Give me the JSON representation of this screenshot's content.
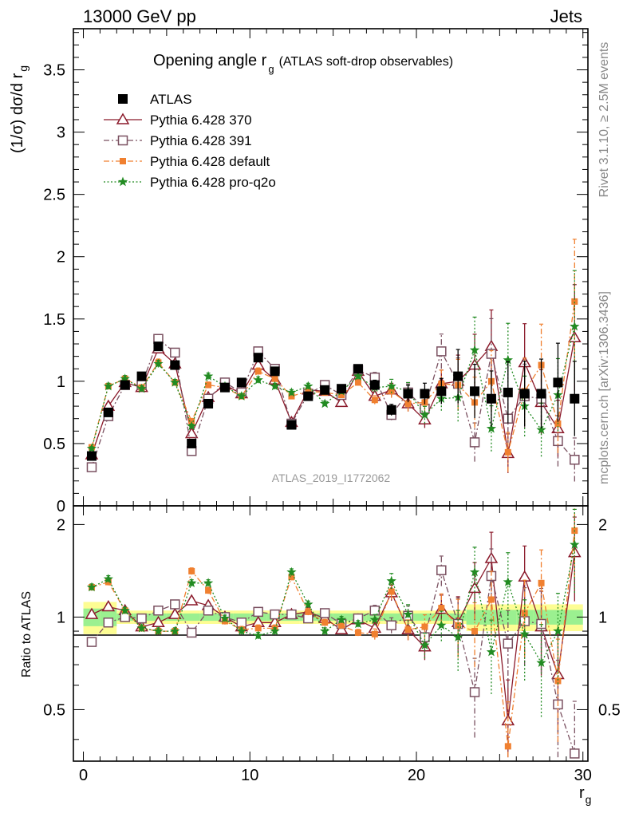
{
  "header": {
    "energy_label": "13000 GeV pp",
    "process_label": "Jets"
  },
  "side_labels": {
    "rivet": "Rivet 3.1.10, ≥ 2.5M events",
    "mcplots": "mcplots.cern.ch [arXiv:1306.3436]"
  },
  "watermark": "ATLAS_2019_I1772062",
  "chart_data": {
    "type": "scatter",
    "title": "Opening angle r",
    "title_sub": "g",
    "title_note": "(ATLAS soft-drop observables)",
    "xlabel": "r",
    "xlabel_sub": "g",
    "ylabel": "(1/σ) dσ/d r",
    "ylabel_sub": "g",
    "ratio_ylabel": "Ratio to ATLAS",
    "xlim": [
      -0.6,
      30.3
    ],
    "ylim": [
      0,
      3.83
    ],
    "ratio_ylim": [
      0.34,
      2.3
    ],
    "xticks": [
      "0",
      "10",
      "20",
      "30"
    ],
    "yticks": [
      "0",
      "0.5",
      "1",
      "1.5",
      "2",
      "2.5",
      "3",
      "3.5"
    ],
    "ratio_yticks": [
      "0.5",
      "1",
      "2"
    ],
    "x": [
      0.5,
      1.5,
      2.5,
      3.5,
      4.5,
      5.5,
      6.5,
      7.5,
      8.5,
      9.5,
      10.5,
      11.5,
      12.5,
      13.5,
      14.5,
      15.5,
      16.5,
      17.5,
      18.5,
      19.5,
      20.5,
      21.5,
      22.5,
      23.5,
      24.5,
      25.5,
      26.5,
      27.5,
      28.5,
      29.5
    ],
    "legend_position": "top-left",
    "series": [
      {
        "name": "ATLAS",
        "color": "#000000",
        "marker": "square-filled",
        "line": "none",
        "values": [
          0.4,
          0.75,
          0.97,
          1.04,
          1.28,
          1.13,
          0.5,
          0.82,
          0.95,
          0.99,
          1.19,
          1.08,
          0.65,
          0.88,
          0.93,
          0.94,
          1.1,
          0.97,
          0.77,
          0.9,
          0.9,
          0.92,
          1.04,
          0.92,
          0.86,
          0.91,
          0.9,
          0.9,
          0.99,
          0.86
        ],
        "ratio": [
          1,
          1,
          1,
          1,
          1,
          1,
          1,
          1,
          1,
          1,
          1,
          1,
          1,
          1,
          1,
          1,
          1,
          1,
          1,
          1,
          1,
          1,
          1,
          1,
          1,
          1,
          1,
          1,
          1,
          1
        ]
      },
      {
        "name": "Pythia 6.428 370",
        "color": "#8b1a2b",
        "marker": "triangle-open",
        "line": "solid",
        "values": [
          0.41,
          0.8,
          0.99,
          0.95,
          1.26,
          1.14,
          0.58,
          0.87,
          0.97,
          0.9,
          1.13,
          1.01,
          0.67,
          0.93,
          0.92,
          0.83,
          1.08,
          0.88,
          0.93,
          0.82,
          0.69,
          0.98,
          1.0,
          1.13,
          1.28,
          0.42,
          1.15,
          0.83,
          0.62,
          1.35
        ],
        "ratio": [
          1.02,
          1.08,
          1.05,
          0.93,
          0.96,
          1.02,
          1.13,
          1.09,
          1.0,
          0.93,
          0.96,
          0.96,
          1.02,
          1.04,
          0.99,
          0.91,
          0.98,
          0.92,
          1.2,
          0.91,
          0.8,
          1.06,
          0.96,
          1.24,
          1.55,
          0.46,
          1.35,
          0.93,
          0.65,
          1.62
        ]
      },
      {
        "name": "Pythia 6.428 391",
        "color": "#7a5060",
        "marker": "square-open",
        "line": "dashdot",
        "values": [
          0.31,
          0.72,
          0.97,
          0.97,
          1.34,
          1.23,
          0.44,
          0.86,
          0.99,
          0.91,
          1.24,
          1.1,
          0.66,
          0.9,
          0.97,
          0.89,
          1.09,
          1.03,
          0.73,
          0.91,
          0.78,
          1.24,
          0.98,
          0.51,
          1.22,
          0.7,
          0.88,
          0.86,
          0.52,
          0.37
        ],
        "ratio": [
          0.83,
          0.96,
          1.0,
          0.99,
          1.05,
          1.1,
          0.89,
          1.05,
          1.0,
          0.96,
          1.04,
          1.02,
          1.02,
          0.99,
          1.03,
          0.95,
          0.99,
          1.05,
          0.94,
          1.01,
          0.86,
          1.42,
          0.95,
          0.57,
          1.36,
          0.82,
          0.97,
          0.95,
          0.52,
          0.36
        ]
      },
      {
        "name": "Pythia 6.428 default",
        "color": "#f08030",
        "marker": "square-filled-small",
        "line": "dashdot",
        "values": [
          0.47,
          0.96,
          1.02,
          0.95,
          1.15,
          0.99,
          0.68,
          0.97,
          0.95,
          0.88,
          1.08,
          1.02,
          0.88,
          0.92,
          0.91,
          0.89,
          0.99,
          0.85,
          0.92,
          0.82,
          0.83,
          0.98,
          0.97,
          0.83,
          1.0,
          0.43,
          0.92,
          1.13,
          0.66,
          1.64
        ],
        "ratio": [
          1.25,
          1.3,
          1.05,
          0.92,
          0.9,
          0.9,
          1.41,
          1.22,
          0.97,
          0.91,
          0.92,
          0.92,
          1.35,
          1.04,
          0.96,
          0.94,
          0.89,
          0.88,
          1.21,
          0.91,
          0.93,
          1.07,
          0.94,
          0.9,
          1.14,
          0.38,
          1.03,
          1.29,
          0.62,
          1.91
        ]
      },
      {
        "name": "Pythia 6.428 pro-q2o",
        "color": "#228b22",
        "marker": "star",
        "line": "dotted",
        "values": [
          0.46,
          0.96,
          1.02,
          0.94,
          1.14,
          0.99,
          0.64,
          1.04,
          0.96,
          0.88,
          1.01,
          0.96,
          0.91,
          0.96,
          0.82,
          0.92,
          1.04,
          0.95,
          0.96,
          0.92,
          0.73,
          0.86,
          0.87,
          1.25,
          0.62,
          1.17,
          0.8,
          0.61,
          0.89,
          1.44
        ],
        "ratio": [
          1.25,
          1.33,
          1.05,
          0.92,
          0.9,
          0.9,
          1.29,
          1.29,
          0.99,
          0.9,
          0.87,
          0.9,
          1.4,
          1.1,
          0.9,
          0.98,
          0.95,
          0.98,
          1.31,
          1.02,
          0.81,
          0.94,
          0.86,
          1.4,
          0.77,
          1.3,
          0.88,
          0.71,
          0.9,
          1.72
        ]
      }
    ]
  }
}
